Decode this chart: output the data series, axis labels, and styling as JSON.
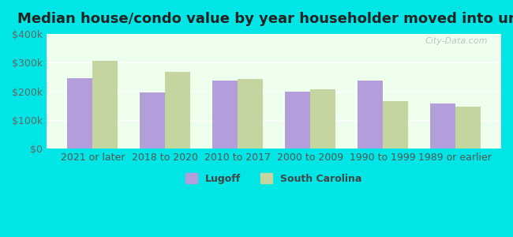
{
  "title": "Median house/condo value by year householder moved into unit",
  "categories": [
    "2021 or later",
    "2018 to 2020",
    "2010 to 2017",
    "2000 to 2009",
    "1990 to 1999",
    "1989 or earlier"
  ],
  "lugoff_values": [
    245000,
    197000,
    237000,
    200000,
    237000,
    158000
  ],
  "sc_values": [
    307000,
    268000,
    243000,
    208000,
    165000,
    147000
  ],
  "lugoff_color": "#b39ddb",
  "sc_color": "#c5d5a0",
  "background_outer": "#00e5e5",
  "background_inner": "#eeffee",
  "ylim": [
    0,
    400000
  ],
  "yticks": [
    0,
    100000,
    200000,
    300000,
    400000
  ],
  "ytick_labels": [
    "$0",
    "$100k",
    "$200k",
    "$300k",
    "$400k"
  ],
  "legend_lugoff": "Lugoff",
  "legend_sc": "South Carolina",
  "watermark": "City-Data.com",
  "title_fontsize": 13,
  "tick_fontsize": 9,
  "legend_fontsize": 9
}
